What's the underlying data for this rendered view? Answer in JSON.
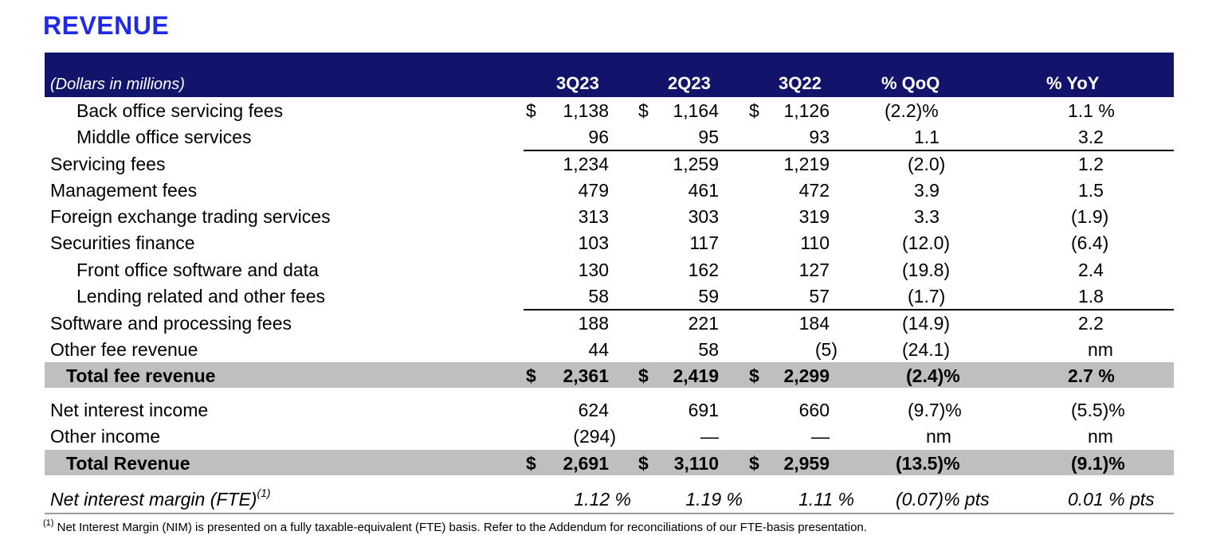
{
  "title": "REVENUE",
  "header": {
    "unit_label": "(Dollars in millions)",
    "columns": [
      "3Q23",
      "2Q23",
      "3Q22",
      "% QoQ",
      "% YoY"
    ]
  },
  "currency_symbol": "$",
  "rows": [
    {
      "label": "Back office servicing fees",
      "c1": "1,138",
      "c2": "1,164",
      "c3": "1,126",
      "qoq": "(2.2)%",
      "yoy": "1.1 %"
    },
    {
      "label": "Middle office services",
      "c1": "96",
      "c2": "95",
      "c3": "93",
      "qoq": "1.1",
      "yoy": "3.2"
    },
    {
      "label": "Servicing fees",
      "c1": "1,234",
      "c2": "1,259",
      "c3": "1,219",
      "qoq": "(2.0)",
      "yoy": "1.2"
    },
    {
      "label": "Management fees",
      "c1": "479",
      "c2": "461",
      "c3": "472",
      "qoq": "3.9",
      "yoy": "1.5"
    },
    {
      "label": "Foreign exchange trading services",
      "c1": "313",
      "c2": "303",
      "c3": "319",
      "qoq": "3.3",
      "yoy": "(1.9)"
    },
    {
      "label": "Securities finance",
      "c1": "103",
      "c2": "117",
      "c3": "110",
      "qoq": "(12.0)",
      "yoy": "(6.4)"
    },
    {
      "label": "Front office software and data",
      "c1": "130",
      "c2": "162",
      "c3": "127",
      "qoq": "(19.8)",
      "yoy": "2.4"
    },
    {
      "label": "Lending related and other fees",
      "c1": "58",
      "c2": "59",
      "c3": "57",
      "qoq": "(1.7)",
      "yoy": "1.8"
    },
    {
      "label": "Software and processing fees",
      "c1": "188",
      "c2": "221",
      "c3": "184",
      "qoq": "(14.9)",
      "yoy": "2.2"
    },
    {
      "label": "Other fee revenue",
      "c1": "44",
      "c2": "58",
      "c3": "(5)",
      "qoq": "(24.1)",
      "yoy": "nm"
    },
    {
      "label": "Total fee revenue",
      "c1": "2,361",
      "c2": "2,419",
      "c3": "2,299",
      "qoq": "(2.4)%",
      "yoy": "2.7 %"
    },
    {
      "label": "Net interest income",
      "c1": "624",
      "c2": "691",
      "c3": "660",
      "qoq": "(9.7)%",
      "yoy": "(5.5)%"
    },
    {
      "label": "Other income",
      "c1": "(294)",
      "c2": "—",
      "c3": "—",
      "qoq": "nm",
      "yoy": "nm"
    },
    {
      "label": "Total Revenue",
      "c1": "2,691",
      "c2": "3,110",
      "c3": "2,959",
      "qoq": "(13.5)%",
      "yoy": "(9.1)%"
    },
    {
      "label": "Net interest margin (FTE)",
      "label_sup": "(1)",
      "c1": "1.12 %",
      "c2": "1.19 %",
      "c3": "1.11 %",
      "qoq": "(0.07)% pts",
      "yoy": "0.01 % pts"
    }
  ],
  "footnote": {
    "marker": "(1)",
    "text": " Net Interest Margin (NIM) is presented on a fully taxable-equivalent (FTE) basis. Refer to the Addendum for reconciliations of our FTE-basis presentation."
  },
  "colors": {
    "title": "#1f2be6",
    "header_bg": "#11146a",
    "total_bg": "#bfbfbf"
  }
}
